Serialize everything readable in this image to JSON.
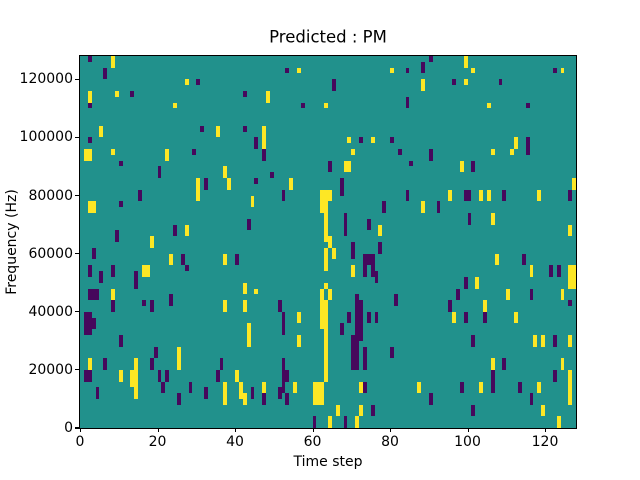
{
  "figure": {
    "title": "Predicted : PM",
    "xlabel": "Time step",
    "ylabel": "Frequency (Hz)"
  },
  "chart_data": {
    "type": "heatmap",
    "title": "Predicted : PM",
    "xlabel": "Time step",
    "ylabel": "Frequency (Hz)",
    "x_range": [
      0,
      128
    ],
    "y_range": [
      0,
      128000
    ],
    "x_ticks": [
      0,
      20,
      40,
      60,
      80,
      100,
      120
    ],
    "y_ticks": [
      0,
      20000,
      40000,
      60000,
      80000,
      100000,
      120000
    ],
    "grid": false,
    "legend": null,
    "grid_shape": {
      "time_steps": 128,
      "freq_bins": 64
    },
    "colors": {
      "background_mid": "#21918c",
      "low_purple": "#46085c",
      "high_yellow": "#fde725",
      "spine": "#000000"
    },
    "cells_format": "[time_col, row_from_top (64 rows, row 0 = ~128 kHz), width_cols, height_rows, color p=purple|y=yellow]",
    "cells": [
      [
        2,
        0,
        1,
        1,
        "p"
      ],
      [
        8,
        0,
        1,
        2,
        "y"
      ],
      [
        6,
        2,
        1,
        2,
        "p"
      ],
      [
        27,
        4,
        1,
        1,
        "y"
      ],
      [
        30,
        4,
        1,
        1,
        "p"
      ],
      [
        2,
        6,
        1,
        2,
        "y"
      ],
      [
        9,
        6,
        1,
        1,
        "y"
      ],
      [
        13,
        6,
        1,
        1,
        "p"
      ],
      [
        42,
        6,
        1,
        1,
        "p"
      ],
      [
        2,
        8,
        1,
        1,
        "p"
      ],
      [
        24,
        8,
        1,
        1,
        "y"
      ],
      [
        5,
        12,
        1,
        2,
        "y"
      ],
      [
        31,
        12,
        1,
        1,
        "p"
      ],
      [
        35,
        12,
        1,
        2,
        "y"
      ],
      [
        42,
        12,
        1,
        1,
        "p"
      ],
      [
        2,
        14,
        1,
        1,
        "p"
      ],
      [
        45,
        14,
        1,
        2,
        "p"
      ],
      [
        1,
        16,
        2,
        2,
        "y"
      ],
      [
        8,
        16,
        1,
        1,
        "y"
      ],
      [
        22,
        16,
        1,
        2,
        "y"
      ],
      [
        29,
        16,
        1,
        1,
        "p"
      ],
      [
        10,
        18,
        1,
        1,
        "p"
      ],
      [
        20,
        19,
        1,
        2,
        "p"
      ],
      [
        37,
        19,
        1,
        2,
        "y"
      ],
      [
        90,
        0,
        1,
        1,
        "p"
      ],
      [
        53,
        2,
        1,
        1,
        "p"
      ],
      [
        56,
        2,
        1,
        1,
        "y"
      ],
      [
        80,
        2,
        1,
        1,
        "y"
      ],
      [
        84,
        2,
        1,
        1,
        "p"
      ],
      [
        88,
        1,
        1,
        2,
        "p"
      ],
      [
        65,
        4,
        1,
        2,
        "p"
      ],
      [
        88,
        4,
        1,
        2,
        "y"
      ],
      [
        48,
        6,
        1,
        2,
        "y"
      ],
      [
        57,
        8,
        1,
        1,
        "p"
      ],
      [
        63,
        8,
        1,
        1,
        "y"
      ],
      [
        84,
        7,
        1,
        2,
        "p"
      ],
      [
        47,
        12,
        1,
        4,
        "y"
      ],
      [
        47,
        16,
        1,
        2,
        "p"
      ],
      [
        69,
        14,
        1,
        1,
        "y"
      ],
      [
        72,
        14,
        1,
        1,
        "p"
      ],
      [
        75,
        14,
        1,
        1,
        "y"
      ],
      [
        80,
        14,
        1,
        1,
        "p"
      ],
      [
        70,
        16,
        1,
        1,
        "y"
      ],
      [
        68,
        18,
        2,
        2,
        "y"
      ],
      [
        82,
        16,
        1,
        1,
        "p"
      ],
      [
        64,
        18,
        1,
        2,
        "p"
      ],
      [
        85,
        18,
        1,
        1,
        "p"
      ],
      [
        90,
        16,
        1,
        2,
        "p"
      ],
      [
        49,
        20,
        1,
        1,
        "p"
      ],
      [
        99,
        0,
        1,
        2,
        "y"
      ],
      [
        101,
        2,
        1,
        1,
        "y"
      ],
      [
        96,
        4,
        1,
        1,
        "p"
      ],
      [
        99,
        4,
        1,
        1,
        "y"
      ],
      [
        108,
        4,
        1,
        1,
        "p"
      ],
      [
        122,
        2,
        1,
        1,
        "p"
      ],
      [
        124,
        2,
        1,
        1,
        "y"
      ],
      [
        105,
        8,
        1,
        1,
        "y"
      ],
      [
        115,
        8,
        1,
        1,
        "p"
      ],
      [
        112,
        14,
        1,
        2,
        "y"
      ],
      [
        115,
        14,
        1,
        3,
        "p"
      ],
      [
        106,
        16,
        1,
        1,
        "y"
      ],
      [
        111,
        16,
        1,
        1,
        "y"
      ],
      [
        98,
        18,
        1,
        2,
        "y"
      ],
      [
        101,
        18,
        1,
        2,
        "p"
      ],
      [
        30,
        21,
        1,
        2,
        "y"
      ],
      [
        32,
        21,
        1,
        2,
        "p"
      ],
      [
        38,
        21,
        1,
        2,
        "y"
      ],
      [
        45,
        21,
        1,
        1,
        "p"
      ],
      [
        30,
        23,
        1,
        2,
        "y"
      ],
      [
        15,
        23,
        1,
        2,
        "p"
      ],
      [
        2,
        25,
        2,
        2,
        "y"
      ],
      [
        10,
        25,
        1,
        1,
        "p"
      ],
      [
        44,
        24,
        1,
        2,
        "y"
      ],
      [
        43,
        28,
        1,
        2,
        "p"
      ],
      [
        24,
        29,
        1,
        2,
        "p"
      ],
      [
        27,
        29,
        1,
        2,
        "y"
      ],
      [
        18,
        31,
        1,
        2,
        "y"
      ],
      [
        9,
        30,
        1,
        2,
        "p"
      ],
      [
        3,
        33,
        1,
        2,
        "p"
      ],
      [
        23,
        34,
        1,
        2,
        "y"
      ],
      [
        26,
        34,
        1,
        2,
        "p"
      ],
      [
        27,
        36,
        1,
        1,
        "p"
      ],
      [
        37,
        34,
        1,
        2,
        "y"
      ],
      [
        40,
        34,
        1,
        2,
        "p"
      ],
      [
        2,
        36,
        1,
        2,
        "p"
      ],
      [
        5,
        37,
        1,
        2,
        "p"
      ],
      [
        8,
        36,
        1,
        2,
        "p"
      ],
      [
        14,
        37,
        1,
        3,
        "p"
      ],
      [
        16,
        36,
        2,
        2,
        "y"
      ],
      [
        2,
        40,
        3,
        2,
        "p"
      ],
      [
        8,
        40,
        1,
        2,
        "y"
      ],
      [
        23,
        41,
        1,
        2,
        "p"
      ],
      [
        42,
        39,
        1,
        2,
        "y"
      ],
      [
        45,
        40,
        1,
        1,
        "y"
      ],
      [
        54,
        21,
        1,
        2,
        "y"
      ],
      [
        67,
        21,
        1,
        3,
        "p"
      ],
      [
        52,
        23,
        1,
        2,
        "p"
      ],
      [
        62,
        23,
        3,
        2,
        "y"
      ],
      [
        62,
        25,
        1,
        2,
        "y"
      ],
      [
        63,
        25,
        1,
        7,
        "y"
      ],
      [
        68,
        27,
        1,
        4,
        "p"
      ],
      [
        70,
        32,
        1,
        3,
        "p"
      ],
      [
        64,
        31,
        1,
        2,
        "y"
      ],
      [
        65,
        33,
        1,
        2,
        "y"
      ],
      [
        63,
        33,
        1,
        4,
        "y"
      ],
      [
        74,
        28,
        1,
        2,
        "p"
      ],
      [
        77,
        29,
        1,
        2,
        "y"
      ],
      [
        78,
        25,
        1,
        2,
        "p"
      ],
      [
        84,
        23,
        1,
        2,
        "p"
      ],
      [
        88,
        25,
        1,
        2,
        "y"
      ],
      [
        92,
        25,
        1,
        2,
        "p"
      ],
      [
        77,
        32,
        1,
        2,
        "p"
      ],
      [
        73,
        34,
        1,
        2,
        "p"
      ],
      [
        74,
        34,
        1,
        2,
        "p"
      ],
      [
        75,
        34,
        1,
        3,
        "p"
      ],
      [
        73,
        36,
        1,
        2,
        "p"
      ],
      [
        75,
        36,
        1,
        2,
        "p"
      ],
      [
        70,
        36,
        1,
        2,
        "y"
      ],
      [
        76,
        37,
        1,
        2,
        "p"
      ],
      [
        63,
        39,
        1,
        1,
        "y"
      ],
      [
        62,
        40,
        1,
        2,
        "y"
      ],
      [
        64,
        40,
        1,
        2,
        "y"
      ],
      [
        71,
        41,
        1,
        2,
        "p"
      ],
      [
        81,
        41,
        1,
        2,
        "p"
      ],
      [
        127,
        21,
        1,
        2,
        "y"
      ],
      [
        95,
        23,
        1,
        2,
        "y"
      ],
      [
        99,
        23,
        2,
        2,
        "p"
      ],
      [
        103,
        23,
        1,
        2,
        "y"
      ],
      [
        105,
        23,
        1,
        2,
        "y"
      ],
      [
        109,
        23,
        1,
        2,
        "p"
      ],
      [
        118,
        23,
        1,
        2,
        "y"
      ],
      [
        126,
        23,
        1,
        2,
        "p"
      ],
      [
        100,
        27,
        1,
        2,
        "p"
      ],
      [
        106,
        27,
        1,
        2,
        "y"
      ],
      [
        126,
        29,
        1,
        2,
        "y"
      ],
      [
        107,
        34,
        1,
        2,
        "y"
      ],
      [
        114,
        34,
        1,
        2,
        "p"
      ],
      [
        116,
        36,
        1,
        2,
        "y"
      ],
      [
        121,
        36,
        1,
        2,
        "p"
      ],
      [
        123,
        36,
        1,
        2,
        "p"
      ],
      [
        126,
        36,
        2,
        4,
        "y"
      ],
      [
        99,
        38,
        1,
        2,
        "p"
      ],
      [
        102,
        38,
        1,
        2,
        "y"
      ],
      [
        97,
        40,
        1,
        2,
        "p"
      ],
      [
        110,
        40,
        1,
        2,
        "y"
      ],
      [
        116,
        40,
        1,
        2,
        "p"
      ],
      [
        124,
        40,
        1,
        2,
        "y"
      ],
      [
        8,
        42,
        1,
        2,
        "p"
      ],
      [
        16,
        42,
        1,
        1,
        "p"
      ],
      [
        18,
        42,
        1,
        2,
        "p"
      ],
      [
        37,
        42,
        1,
        2,
        "y"
      ],
      [
        42,
        42,
        1,
        2,
        "y"
      ],
      [
        1,
        44,
        2,
        4,
        "p"
      ],
      [
        3,
        45,
        1,
        2,
        "p"
      ],
      [
        10,
        48,
        1,
        2,
        "p"
      ],
      [
        43,
        46,
        1,
        4,
        "y"
      ],
      [
        2,
        52,
        1,
        2,
        "y"
      ],
      [
        6,
        52,
        1,
        2,
        "p"
      ],
      [
        1,
        54,
        2,
        2,
        "p"
      ],
      [
        10,
        54,
        1,
        2,
        "y"
      ],
      [
        14,
        52,
        1,
        7,
        "y"
      ],
      [
        13,
        54,
        1,
        3,
        "y"
      ],
      [
        19,
        50,
        1,
        2,
        "p"
      ],
      [
        18,
        52,
        1,
        2,
        "p"
      ],
      [
        20,
        54,
        1,
        2,
        "p"
      ],
      [
        21,
        56,
        1,
        2,
        "p"
      ],
      [
        22,
        54,
        1,
        2,
        "p"
      ],
      [
        25,
        50,
        1,
        4,
        "y"
      ],
      [
        28,
        56,
        1,
        2,
        "p"
      ],
      [
        25,
        58,
        1,
        2,
        "p"
      ],
      [
        32,
        57,
        1,
        2,
        "p"
      ],
      [
        35,
        54,
        1,
        2,
        "p"
      ],
      [
        36,
        52,
        1,
        2,
        "p"
      ],
      [
        37,
        56,
        1,
        4,
        "y"
      ],
      [
        40,
        54,
        1,
        2,
        "y"
      ],
      [
        41,
        56,
        1,
        3,
        "y"
      ],
      [
        42,
        58,
        1,
        2,
        "y"
      ],
      [
        44,
        57,
        1,
        2,
        "p"
      ],
      [
        4,
        57,
        1,
        2,
        "p"
      ],
      [
        51,
        42,
        1,
        2,
        "p"
      ],
      [
        62,
        42,
        2,
        5,
        "y"
      ],
      [
        63,
        47,
        1,
        8,
        "y"
      ],
      [
        71,
        42,
        2,
        2,
        "p"
      ],
      [
        67,
        46,
        1,
        2,
        "p"
      ],
      [
        69,
        44,
        1,
        2,
        "p"
      ],
      [
        71,
        44,
        2,
        5,
        "p"
      ],
      [
        70,
        48,
        2,
        6,
        "p"
      ],
      [
        73,
        50,
        1,
        4,
        "p"
      ],
      [
        74,
        44,
        1,
        2,
        "p"
      ],
      [
        76,
        44,
        1,
        2,
        "p"
      ],
      [
        52,
        44,
        1,
        4,
        "p"
      ],
      [
        56,
        44,
        1,
        2,
        "y"
      ],
      [
        56,
        48,
        1,
        2,
        "y"
      ],
      [
        52,
        52,
        1,
        4,
        "p"
      ],
      [
        53,
        54,
        1,
        2,
        "p"
      ],
      [
        55,
        56,
        1,
        2,
        "y"
      ],
      [
        52,
        56,
        1,
        2,
        "p"
      ],
      [
        53,
        58,
        1,
        2,
        "p"
      ],
      [
        51,
        57,
        1,
        2,
        "p"
      ],
      [
        47,
        56,
        1,
        2,
        "y"
      ],
      [
        47,
        58,
        1,
        2,
        "p"
      ],
      [
        60,
        56,
        3,
        4,
        "y"
      ],
      [
        63,
        54,
        1,
        2,
        "y"
      ],
      [
        72,
        56,
        1,
        2,
        "y"
      ],
      [
        73,
        56,
        1,
        2,
        "p"
      ],
      [
        72,
        60,
        1,
        2,
        "y"
      ],
      [
        75,
        60,
        1,
        2,
        "p"
      ],
      [
        66,
        60,
        1,
        2,
        "y"
      ],
      [
        60,
        62,
        1,
        2,
        "p"
      ],
      [
        64,
        62,
        1,
        2,
        "y"
      ],
      [
        68,
        62,
        1,
        2,
        "p"
      ],
      [
        71,
        62,
        1,
        2,
        "y"
      ],
      [
        80,
        50,
        1,
        2,
        "p"
      ],
      [
        87,
        56,
        1,
        2,
        "y"
      ],
      [
        90,
        58,
        1,
        2,
        "p"
      ],
      [
        95,
        42,
        1,
        2,
        "p"
      ],
      [
        104,
        42,
        1,
        2,
        "y"
      ],
      [
        126,
        42,
        1,
        1,
        "p"
      ],
      [
        96,
        44,
        1,
        2,
        "y"
      ],
      [
        99,
        44,
        1,
        2,
        "p"
      ],
      [
        104,
        44,
        1,
        2,
        "p"
      ],
      [
        112,
        44,
        1,
        2,
        "y"
      ],
      [
        101,
        48,
        1,
        2,
        "p"
      ],
      [
        117,
        48,
        1,
        2,
        "y"
      ],
      [
        119,
        48,
        1,
        2,
        "y"
      ],
      [
        122,
        48,
        1,
        2,
        "p"
      ],
      [
        126,
        48,
        1,
        2,
        "y"
      ],
      [
        106,
        52,
        1,
        2,
        "y"
      ],
      [
        109,
        52,
        1,
        2,
        "p"
      ],
      [
        124,
        52,
        1,
        2,
        "y"
      ],
      [
        106,
        54,
        1,
        4,
        "p"
      ],
      [
        122,
        54,
        1,
        2,
        "p"
      ],
      [
        126,
        54,
        1,
        4,
        "y"
      ],
      [
        98,
        56,
        1,
        2,
        "p"
      ],
      [
        103,
        56,
        1,
        2,
        "y"
      ],
      [
        113,
        56,
        1,
        2,
        "p"
      ],
      [
        116,
        58,
        1,
        2,
        "p"
      ],
      [
        118,
        56,
        1,
        2,
        "y"
      ],
      [
        126,
        58,
        1,
        2,
        "y"
      ],
      [
        119,
        60,
        1,
        2,
        "y"
      ],
      [
        101,
        60,
        1,
        2,
        "p"
      ],
      [
        123,
        62,
        1,
        2,
        "y"
      ]
    ]
  }
}
